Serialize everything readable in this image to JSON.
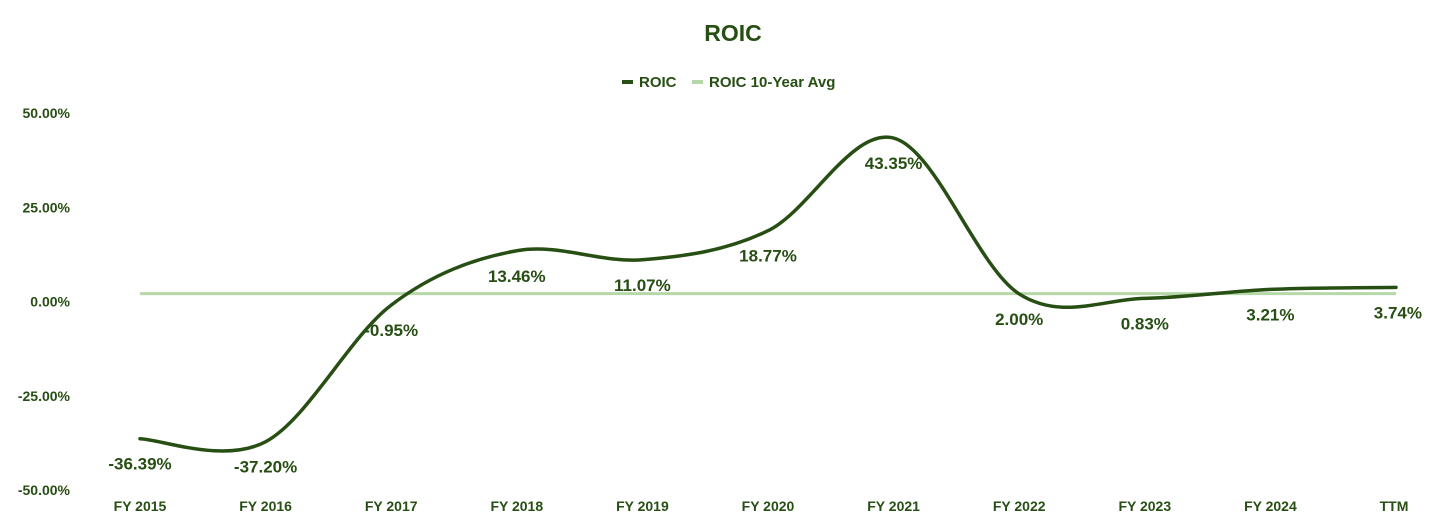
{
  "chart_data": {
    "type": "line",
    "title": "ROIC",
    "categories": [
      "FY 2015",
      "FY 2016",
      "FY 2017",
      "FY 2018",
      "FY 2019",
      "FY 2020",
      "FY 2021",
      "FY 2022",
      "FY 2023",
      "FY 2024",
      "TTM"
    ],
    "series": [
      {
        "name": "ROIC",
        "values": [
          -36.39,
          -37.2,
          -0.95,
          13.46,
          11.07,
          18.77,
          43.35,
          2.0,
          0.83,
          3.21,
          3.74
        ],
        "data_labels": [
          "-36.39%",
          "-37.20%",
          "-0.95%",
          "13.46%",
          "11.07%",
          "18.77%",
          "43.35%",
          "2.00%",
          "0.83%",
          "3.21%",
          "3.74%"
        ],
        "color": "#274e13"
      },
      {
        "name": "ROIC 10-Year Avg",
        "values": [
          2.08,
          2.08,
          2.08,
          2.08,
          2.08,
          2.08,
          2.08,
          2.08,
          2.08,
          2.08,
          2.08
        ],
        "color": "#b6d7a8"
      }
    ],
    "ylim": [
      -50,
      50
    ],
    "yticks": [
      50,
      25,
      0,
      -25,
      -50
    ],
    "ytick_labels": [
      "50.00%",
      "25.00%",
      "0.00%",
      "-25.00%",
      "-50.00%"
    ],
    "legend_position": "top",
    "grid": false,
    "xlabel": "",
    "ylabel": "",
    "colors": {
      "text": "#274e13",
      "title": "#274e13"
    }
  }
}
